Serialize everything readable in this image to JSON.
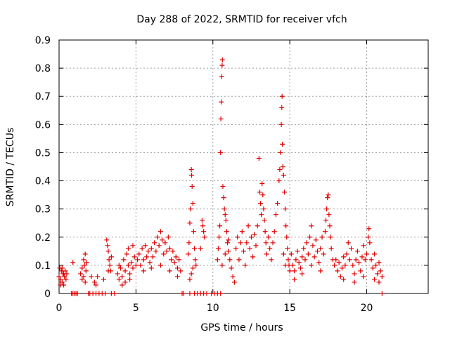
{
  "chart_data": {
    "type": "scatter",
    "title": "Day 288 of 2022, SRMTID for receiver vfch",
    "xlabel": "GPS time / hours",
    "ylabel": "SRMTID / TECUs",
    "xlim": [
      0,
      24
    ],
    "ylim": [
      0,
      0.9
    ],
    "x_ticks": [
      0,
      5,
      10,
      15,
      20
    ],
    "y_ticks": [
      0,
      0.1,
      0.2,
      0.3,
      0.4,
      0.5,
      0.6,
      0.7,
      0.8,
      0.9
    ],
    "x_tick_labels": [
      "0",
      "5",
      "10",
      "15",
      "20"
    ],
    "y_tick_labels": [
      "0",
      "0.1",
      "0.2",
      "0.3",
      "0.4",
      "0.5",
      "0.6",
      "0.7",
      "0.8",
      "0.9"
    ],
    "grid": true,
    "marker": "+",
    "color": "#e00000",
    "series": [
      {
        "name": "SRMTID",
        "points": [
          [
            0.0,
            0.06
          ],
          [
            0.05,
            0.09
          ],
          [
            0.1,
            0.05
          ],
          [
            0.15,
            0.08
          ],
          [
            0.2,
            0.04
          ],
          [
            0.25,
            0.07
          ],
          [
            0.3,
            0.03
          ],
          [
            0.35,
            0.06
          ],
          [
            0.4,
            0.08
          ],
          [
            0.45,
            0.05
          ],
          [
            0.5,
            0.07
          ],
          [
            0.1,
            0.03
          ],
          [
            0.2,
            0.09
          ],
          [
            0.3,
            0.07
          ],
          [
            0.8,
            0.0
          ],
          [
            0.9,
            0.0
          ],
          [
            1.0,
            0.0
          ],
          [
            1.1,
            0.0
          ],
          [
            1.2,
            0.0
          ],
          [
            0.9,
            0.11
          ],
          [
            1.4,
            0.07
          ],
          [
            1.5,
            0.09
          ],
          [
            1.6,
            0.12
          ],
          [
            1.65,
            0.1
          ],
          [
            1.7,
            0.14
          ],
          [
            1.75,
            0.08
          ],
          [
            1.8,
            0.11
          ],
          [
            1.5,
            0.05
          ],
          [
            1.6,
            0.06
          ],
          [
            1.7,
            0.04
          ],
          [
            1.9,
            0.0
          ],
          [
            2.0,
            0.0
          ],
          [
            2.2,
            0.0
          ],
          [
            2.4,
            0.0
          ],
          [
            2.6,
            0.0
          ],
          [
            2.8,
            0.0
          ],
          [
            3.0,
            0.0
          ],
          [
            3.4,
            0.0
          ],
          [
            3.6,
            0.0
          ],
          [
            2.1,
            0.06
          ],
          [
            2.3,
            0.04
          ],
          [
            2.4,
            0.03
          ],
          [
            2.5,
            0.06
          ],
          [
            2.9,
            0.05
          ],
          [
            3.2,
            0.08
          ],
          [
            3.1,
            0.19
          ],
          [
            3.15,
            0.17
          ],
          [
            3.2,
            0.15
          ],
          [
            3.25,
            0.12
          ],
          [
            3.3,
            0.1
          ],
          [
            3.35,
            0.08
          ],
          [
            3.4,
            0.13
          ],
          [
            3.8,
            0.07
          ],
          [
            3.9,
            0.05
          ],
          [
            4.0,
            0.09
          ],
          [
            4.1,
            0.06
          ],
          [
            4.2,
            0.12
          ],
          [
            4.3,
            0.08
          ],
          [
            4.4,
            0.14
          ],
          [
            4.5,
            0.1
          ],
          [
            4.6,
            0.07
          ],
          [
            4.7,
            0.11
          ],
          [
            4.8,
            0.09
          ],
          [
            4.9,
            0.13
          ],
          [
            5.0,
            0.1
          ],
          [
            4.1,
            0.03
          ],
          [
            4.3,
            0.04
          ],
          [
            4.6,
            0.05
          ],
          [
            3.9,
            0.1
          ],
          [
            4.5,
            0.16
          ],
          [
            4.8,
            0.17
          ],
          [
            5.1,
            0.12
          ],
          [
            5.2,
            0.14
          ],
          [
            5.3,
            0.1
          ],
          [
            5.4,
            0.16
          ],
          [
            5.5,
            0.12
          ],
          [
            5.6,
            0.17
          ],
          [
            5.7,
            0.13
          ],
          [
            5.8,
            0.15
          ],
          [
            5.9,
            0.11
          ],
          [
            6.0,
            0.16
          ],
          [
            6.1,
            0.13
          ],
          [
            6.2,
            0.18
          ],
          [
            6.3,
            0.15
          ],
          [
            6.4,
            0.2
          ],
          [
            6.5,
            0.17
          ],
          [
            6.6,
            0.22
          ],
          [
            6.7,
            0.19
          ],
          [
            6.8,
            0.14
          ],
          [
            6.9,
            0.18
          ],
          [
            7.0,
            0.15
          ],
          [
            7.1,
            0.2
          ],
          [
            7.2,
            0.16
          ],
          [
            7.3,
            0.12
          ],
          [
            7.4,
            0.15
          ],
          [
            7.5,
            0.11
          ],
          [
            7.6,
            0.13
          ],
          [
            7.7,
            0.09
          ],
          [
            7.8,
            0.12
          ],
          [
            7.9,
            0.08
          ],
          [
            5.5,
            0.08
          ],
          [
            6.0,
            0.09
          ],
          [
            6.6,
            0.1
          ],
          [
            7.2,
            0.08
          ],
          [
            7.7,
            0.06
          ],
          [
            8.0,
            0.0
          ],
          [
            8.1,
            0.0
          ],
          [
            8.5,
            0.0
          ],
          [
            8.8,
            0.0
          ],
          [
            9.0,
            0.0
          ],
          [
            9.2,
            0.0
          ],
          [
            9.4,
            0.0
          ],
          [
            9.6,
            0.0
          ],
          [
            9.9,
            0.0
          ],
          [
            10.1,
            0.0
          ],
          [
            10.3,
            0.0
          ],
          [
            10.5,
            0.0
          ],
          [
            8.4,
            0.14
          ],
          [
            8.45,
            0.18
          ],
          [
            8.5,
            0.25
          ],
          [
            8.55,
            0.3
          ],
          [
            8.6,
            0.44
          ],
          [
            8.62,
            0.42
          ],
          [
            8.65,
            0.38
          ],
          [
            8.7,
            0.32
          ],
          [
            8.75,
            0.22
          ],
          [
            8.8,
            0.16
          ],
          [
            8.85,
            0.12
          ],
          [
            8.9,
            0.1
          ],
          [
            8.5,
            0.05
          ],
          [
            8.6,
            0.07
          ],
          [
            8.7,
            0.09
          ],
          [
            9.3,
            0.26
          ],
          [
            9.35,
            0.24
          ],
          [
            9.4,
            0.22
          ],
          [
            9.45,
            0.2
          ],
          [
            9.2,
            0.16
          ],
          [
            10.3,
            0.12
          ],
          [
            10.35,
            0.16
          ],
          [
            10.4,
            0.2
          ],
          [
            10.45,
            0.24
          ],
          [
            10.5,
            0.5
          ],
          [
            10.52,
            0.62
          ],
          [
            10.55,
            0.68
          ],
          [
            10.58,
            0.77
          ],
          [
            10.6,
            0.81
          ],
          [
            10.62,
            0.83
          ],
          [
            10.65,
            0.38
          ],
          [
            10.7,
            0.34
          ],
          [
            10.75,
            0.3
          ],
          [
            10.8,
            0.28
          ],
          [
            10.85,
            0.26
          ],
          [
            10.9,
            0.22
          ],
          [
            10.95,
            0.18
          ],
          [
            11.0,
            0.15
          ],
          [
            11.1,
            0.12
          ],
          [
            11.2,
            0.09
          ],
          [
            11.3,
            0.06
          ],
          [
            11.4,
            0.04
          ],
          [
            10.6,
            0.1
          ],
          [
            10.8,
            0.14
          ],
          [
            11.0,
            0.19
          ],
          [
            11.5,
            0.16
          ],
          [
            11.6,
            0.2
          ],
          [
            11.7,
            0.12
          ],
          [
            11.8,
            0.18
          ],
          [
            11.9,
            0.22
          ],
          [
            12.0,
            0.15
          ],
          [
            12.1,
            0.1
          ],
          [
            12.2,
            0.18
          ],
          [
            12.3,
            0.24
          ],
          [
            12.4,
            0.16
          ],
          [
            12.5,
            0.2
          ],
          [
            12.6,
            0.13
          ],
          [
            12.7,
            0.21
          ],
          [
            12.8,
            0.17
          ],
          [
            12.9,
            0.24
          ],
          [
            13.0,
            0.48
          ],
          [
            13.05,
            0.36
          ],
          [
            13.1,
            0.32
          ],
          [
            13.15,
            0.28
          ],
          [
            13.2,
            0.39
          ],
          [
            13.25,
            0.35
          ],
          [
            13.3,
            0.3
          ],
          [
            13.35,
            0.26
          ],
          [
            13.4,
            0.22
          ],
          [
            13.45,
            0.18
          ],
          [
            13.5,
            0.14
          ],
          [
            13.6,
            0.2
          ],
          [
            13.7,
            0.16
          ],
          [
            13.8,
            0.12
          ],
          [
            13.9,
            0.18
          ],
          [
            14.0,
            0.22
          ],
          [
            14.1,
            0.28
          ],
          [
            14.2,
            0.32
          ],
          [
            14.3,
            0.4
          ],
          [
            14.35,
            0.44
          ],
          [
            14.4,
            0.5
          ],
          [
            14.45,
            0.6
          ],
          [
            14.48,
            0.66
          ],
          [
            14.5,
            0.7
          ],
          [
            14.52,
            0.53
          ],
          [
            14.55,
            0.45
          ],
          [
            14.6,
            0.42
          ],
          [
            14.65,
            0.36
          ],
          [
            14.7,
            0.3
          ],
          [
            14.75,
            0.24
          ],
          [
            14.8,
            0.2
          ],
          [
            14.85,
            0.16
          ],
          [
            14.9,
            0.12
          ],
          [
            14.95,
            0.1
          ],
          [
            15.0,
            0.08
          ],
          [
            14.6,
            0.14
          ],
          [
            14.7,
            0.1
          ],
          [
            15.1,
            0.14
          ],
          [
            15.2,
            0.1
          ],
          [
            15.3,
            0.08
          ],
          [
            15.4,
            0.12
          ],
          [
            15.5,
            0.15
          ],
          [
            15.6,
            0.11
          ],
          [
            15.7,
            0.09
          ],
          [
            15.8,
            0.13
          ],
          [
            15.9,
            0.16
          ],
          [
            16.0,
            0.12
          ],
          [
            16.1,
            0.18
          ],
          [
            16.2,
            0.14
          ],
          [
            16.3,
            0.2
          ],
          [
            16.4,
            0.24
          ],
          [
            16.5,
            0.17
          ],
          [
            16.6,
            0.13
          ],
          [
            16.7,
            0.19
          ],
          [
            16.8,
            0.15
          ],
          [
            16.9,
            0.11
          ],
          [
            17.0,
            0.16
          ],
          [
            17.1,
            0.2
          ],
          [
            17.2,
            0.14
          ],
          [
            15.3,
            0.05
          ],
          [
            15.8,
            0.07
          ],
          [
            16.4,
            0.1
          ],
          [
            17.0,
            0.08
          ],
          [
            17.3,
            0.22
          ],
          [
            17.35,
            0.26
          ],
          [
            17.4,
            0.3
          ],
          [
            17.45,
            0.34
          ],
          [
            17.5,
            0.35
          ],
          [
            17.55,
            0.28
          ],
          [
            17.6,
            0.24
          ],
          [
            17.65,
            0.2
          ],
          [
            17.7,
            0.16
          ],
          [
            17.8,
            0.12
          ],
          [
            17.9,
            0.1
          ],
          [
            18.0,
            0.12
          ],
          [
            18.1,
            0.08
          ],
          [
            18.2,
            0.11
          ],
          [
            18.3,
            0.06
          ],
          [
            18.4,
            0.09
          ],
          [
            18.5,
            0.13
          ],
          [
            18.6,
            0.1
          ],
          [
            18.7,
            0.14
          ],
          [
            18.8,
            0.18
          ],
          [
            18.9,
            0.12
          ],
          [
            19.0,
            0.16
          ],
          [
            19.1,
            0.1
          ],
          [
            19.2,
            0.07
          ],
          [
            19.3,
            0.12
          ],
          [
            19.4,
            0.15
          ],
          [
            19.5,
            0.11
          ],
          [
            19.6,
            0.08
          ],
          [
            19.7,
            0.13
          ],
          [
            19.8,
            0.17
          ],
          [
            19.9,
            0.12
          ],
          [
            20.0,
            0.14
          ],
          [
            20.1,
            0.2
          ],
          [
            20.15,
            0.23
          ],
          [
            20.2,
            0.18
          ],
          [
            20.3,
            0.12
          ],
          [
            20.4,
            0.09
          ],
          [
            20.5,
            0.14
          ],
          [
            20.6,
            0.1
          ],
          [
            20.7,
            0.07
          ],
          [
            20.8,
            0.11
          ],
          [
            20.9,
            0.08
          ],
          [
            21.0,
            0.06
          ],
          [
            18.5,
            0.05
          ],
          [
            19.2,
            0.04
          ],
          [
            19.8,
            0.06
          ],
          [
            20.5,
            0.05
          ],
          [
            20.8,
            0.04
          ],
          [
            21.0,
            0.0
          ]
        ]
      }
    ]
  }
}
